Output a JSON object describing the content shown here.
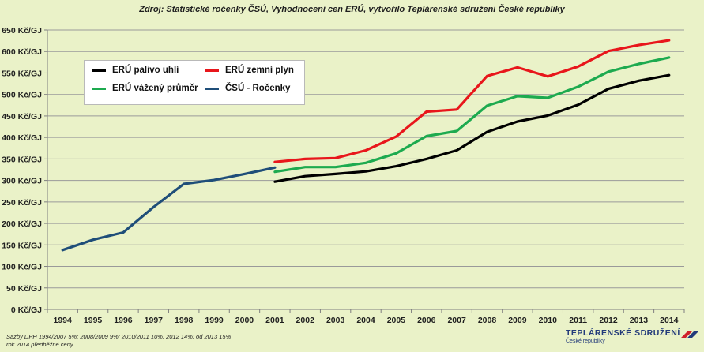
{
  "header": {
    "source_title": "Zdroj: Statistické ročenky ČSÚ, Vyhodnocení cen ERÚ, vytvořilo Teplárenské sdružení  České republiky"
  },
  "footnote": {
    "line1": "Sazby DPH 1994/2007  5%; 2008/2009  9%; 2010/2011  10%,  2012  14%; od 2013  15%",
    "line2": "rok 2014 předběžné ceny"
  },
  "logo": {
    "title": "TEPLÁRENSKÉ SDRUŽENÍ",
    "subtitle": "České republiky"
  },
  "chart_data": {
    "type": "line",
    "title": "",
    "xlabel": "",
    "ylabel": "",
    "ylim": [
      0,
      650
    ],
    "y_step": 50,
    "y_tick_suffix": " Kč/GJ",
    "grid": true,
    "legend_position": "top-left",
    "categories": [
      "1994",
      "1995",
      "1996",
      "1997",
      "1998",
      "1999",
      "2000",
      "2001",
      "2002",
      "2003",
      "2004",
      "2005",
      "2006",
      "2007",
      "2008",
      "2009",
      "2010",
      "2011",
      "2012",
      "2013",
      "2014"
    ],
    "series": [
      {
        "name": "ERÚ palivo uhlí",
        "color": "#000000",
        "values": [
          null,
          null,
          null,
          null,
          null,
          null,
          null,
          297,
          310,
          315,
          321,
          333,
          350,
          370,
          413,
          437,
          451,
          476,
          513,
          532,
          545
        ]
      },
      {
        "name": "ERÚ zemní plyn",
        "color": "#e8161b",
        "values": [
          null,
          null,
          null,
          null,
          null,
          null,
          null,
          343,
          350,
          352,
          370,
          402,
          460,
          465,
          543,
          563,
          542,
          565,
          601,
          615,
          626
        ]
      },
      {
        "name": "ERÚ vážený průměr",
        "color": "#1daa4f",
        "values": [
          null,
          null,
          null,
          null,
          null,
          null,
          null,
          320,
          331,
          331,
          341,
          363,
          403,
          415,
          474,
          496,
          492,
          518,
          553,
          571,
          586
        ]
      },
      {
        "name": "ČSÚ - Ročenky",
        "color": "#1f4e79",
        "values": [
          138,
          162,
          179,
          238,
          292,
          301,
          315,
          330,
          null,
          null,
          null,
          null,
          null,
          null,
          null,
          null,
          null,
          null,
          null,
          null,
          null
        ]
      }
    ]
  }
}
